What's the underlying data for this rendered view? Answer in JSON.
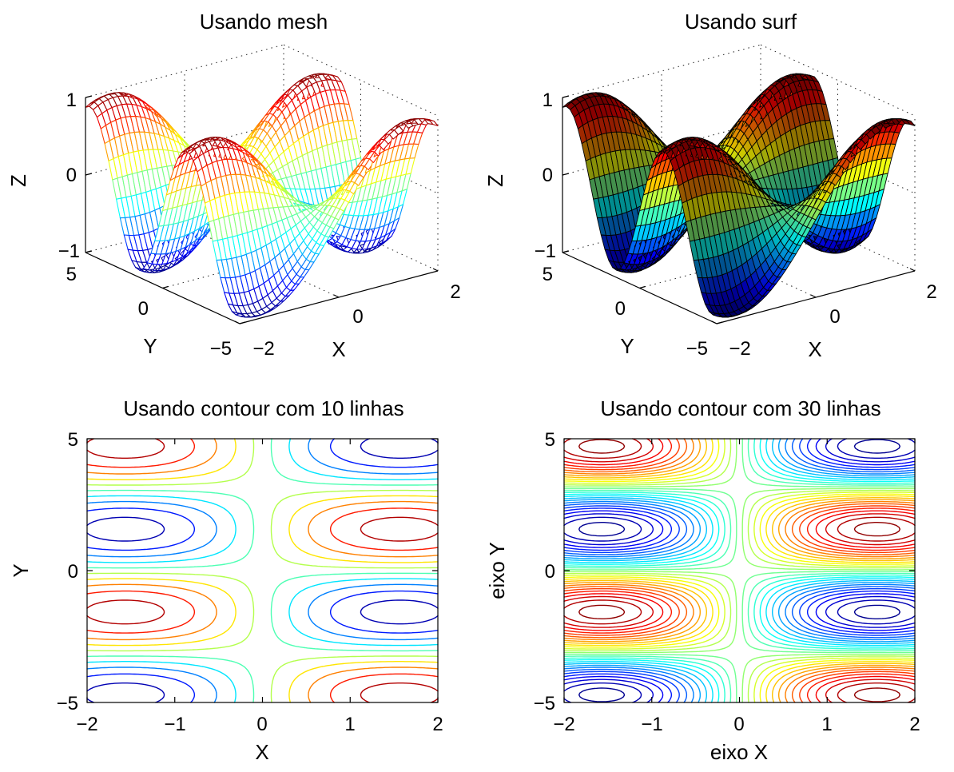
{
  "chart_data": [
    {
      "type": "surface",
      "style": "mesh",
      "title": "Usando mesh",
      "xlabel": "X",
      "ylabel": "Y",
      "zlabel": "Z",
      "xlim": [
        -2,
        2
      ],
      "ylim": [
        -5,
        5
      ],
      "zlim": [
        -1,
        1
      ],
      "x_ticks": [
        "−2",
        "0",
        "2"
      ],
      "y_ticks": [
        "−5",
        "0",
        "5"
      ],
      "z_ticks": [
        "−1",
        "0",
        "1"
      ],
      "function": "Z = sin(X)·sin(Y)",
      "colormap": "jet"
    },
    {
      "type": "surface",
      "style": "surf",
      "title": "Usando surf",
      "xlabel": "X",
      "ylabel": "Y",
      "zlabel": "Z",
      "xlim": [
        -2,
        2
      ],
      "ylim": [
        -5,
        5
      ],
      "zlim": [
        -1,
        1
      ],
      "x_ticks": [
        "−2",
        "0",
        "2"
      ],
      "y_ticks": [
        "−5",
        "0",
        "5"
      ],
      "z_ticks": [
        "−1",
        "0",
        "1"
      ],
      "function": "Z = sin(X)·sin(Y)",
      "colormap": "jet"
    },
    {
      "type": "contour",
      "title": "Usando contour com 10 linhas",
      "xlabel": "X",
      "ylabel": "Y",
      "xlim": [
        -2,
        2
      ],
      "ylim": [
        -5,
        5
      ],
      "x_ticks": [
        "−2",
        "−1",
        "0",
        "1",
        "2"
      ],
      "y_ticks": [
        "−5",
        "0",
        "5"
      ],
      "levels": 10,
      "function": "Z = sin(X)·sin(Y)",
      "colormap": "jet"
    },
    {
      "type": "contour",
      "title": "Usando contour com 30 linhas",
      "xlabel": "eixo X",
      "ylabel": "eixo Y",
      "xlim": [
        -2,
        2
      ],
      "ylim": [
        -5,
        5
      ],
      "x_ticks": [
        "−2",
        "−1",
        "0",
        "1",
        "2"
      ],
      "y_ticks": [
        "−5",
        "0",
        "5"
      ],
      "levels": 30,
      "function": "Z = sin(X)·sin(Y)",
      "colormap": "jet"
    }
  ]
}
